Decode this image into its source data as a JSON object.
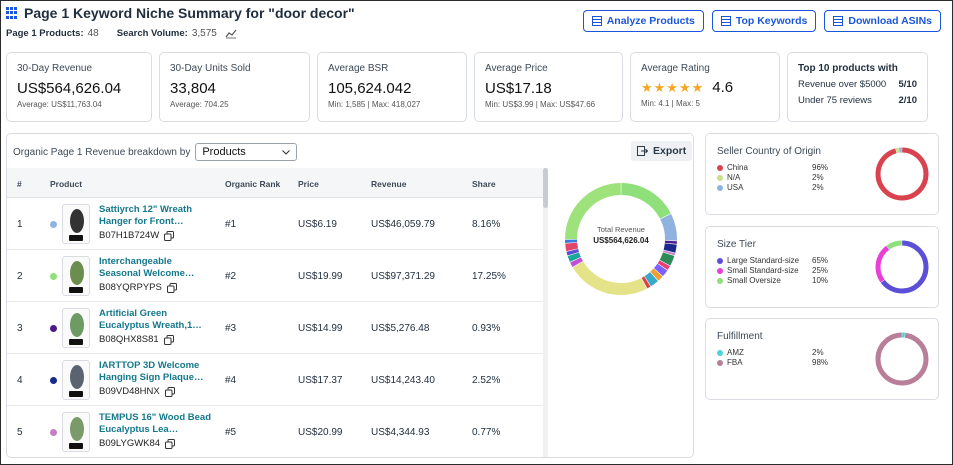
{
  "header": {
    "title": "Page 1 Keyword Niche Summary for \"door decor\"",
    "page1_products_label": "Page 1 Products:",
    "page1_products_value": "48",
    "search_volume_label": "Search Volume:",
    "search_volume_value": "3,575"
  },
  "buttons": {
    "analyze": "Analyze Products",
    "top_keywords": "Top Keywords",
    "download": "Download ASINs"
  },
  "stats": {
    "revenue": {
      "label": "30-Day Revenue",
      "value": "US$564,626.04",
      "sub": "Average: US$11,763.04"
    },
    "units": {
      "label": "30-Day Units Sold",
      "value": "33,804",
      "sub": "Average: 704.25"
    },
    "bsr": {
      "label": "Average BSR",
      "value": "105,624.042",
      "sub": "Min: 1,585 | Max: 418,027"
    },
    "price": {
      "label": "Average Price",
      "value": "US$17.18",
      "sub": "Min: US$3.99 | Max: US$47.66"
    },
    "rating": {
      "label": "Average Rating",
      "value": "4.6",
      "stars": 4.6,
      "sub": "Min: 4.1 | Max: 5"
    },
    "top10": {
      "label": "Top 10 products with",
      "rows": [
        {
          "label": "Revenue over $5000",
          "value": "5/10"
        },
        {
          "label": "Under 75 reviews",
          "value": "2/10"
        }
      ]
    }
  },
  "breakdown": {
    "label": "Organic Page 1 Revenue breakdown by",
    "select_value": "Products",
    "export_label": "Export",
    "total_label": "Total Revenue",
    "total_value": "US$564,626.04"
  },
  "table": {
    "headers": {
      "rank": "#",
      "product": "Product",
      "organic_rank": "Organic Rank",
      "price": "Price",
      "revenue": "Revenue",
      "share": "Share"
    },
    "rows": [
      {
        "rank": "1",
        "name": "Sattiyrch 12\" Wreath Hanger for Front…",
        "asin": "B07H1B724W",
        "organic_rank": "#1",
        "price": "US$6.19",
        "revenue": "US$46,059.79",
        "share": "8.16%",
        "dot": "#8fb3de",
        "img": "#333333"
      },
      {
        "rank": "2",
        "name": "Interchangeable Seasonal Welcome…",
        "asin": "B08YQRPYPS",
        "organic_rank": "#2",
        "price": "US$19.99",
        "revenue": "US$97,371.29",
        "share": "17.25%",
        "dot": "#8fe07a",
        "img": "#6b8e4e"
      },
      {
        "rank": "3",
        "name": "Artificial Green Eucalyptus Wreath,1…",
        "asin": "B08QHX8S81",
        "organic_rank": "#3",
        "price": "US$14.99",
        "revenue": "US$5,276.48",
        "share": "0.93%",
        "dot": "#4b1a8a",
        "img": "#6e9a63"
      },
      {
        "rank": "4",
        "name": "IARTTOP 3D Welcome Hanging Sign Plaque…",
        "asin": "B09VD48HNX",
        "organic_rank": "#4",
        "price": "US$17.37",
        "revenue": "US$14,243.40",
        "share": "2.52%",
        "dot": "#1a2a8a",
        "img": "#5a6470"
      },
      {
        "rank": "5",
        "name": "TEMPUS 16\" Wood Bead Eucalyptus Lea…",
        "asin": "B09LYGWK84",
        "organic_rank": "#5",
        "price": "US$20.99",
        "revenue": "US$4,344.93",
        "share": "0.77%",
        "dot": "#c77dc4",
        "img": "#7a9a6a"
      }
    ]
  },
  "seller_country": {
    "title": "Seller Country of Origin",
    "items": [
      {
        "label": "China",
        "value": "96%",
        "pct": 96,
        "color": "#d9434f"
      },
      {
        "label": "N/A",
        "value": "2%",
        "pct": 2,
        "color": "#c9df8a"
      },
      {
        "label": "USA",
        "value": "2%",
        "pct": 2,
        "color": "#8fb3de"
      }
    ]
  },
  "size_tier": {
    "title": "Size Tier",
    "items": [
      {
        "label": "Large Standard-size",
        "value": "65%",
        "pct": 65,
        "color": "#5b4fd6"
      },
      {
        "label": "Small Standard-size",
        "value": "25%",
        "pct": 25,
        "color": "#e83fd6"
      },
      {
        "label": "Small Oversize",
        "value": "10%",
        "pct": 10,
        "color": "#8fe07a"
      }
    ]
  },
  "fulfillment": {
    "title": "Fulfillment",
    "items": [
      {
        "label": "AMZ",
        "value": "2%",
        "pct": 2,
        "color": "#4fd1d9"
      },
      {
        "label": "FBA",
        "value": "98%",
        "pct": 98,
        "color": "#b97e98"
      }
    ]
  },
  "revenue_donut": {
    "segments": [
      {
        "pct": 17.25,
        "color": "#8fe07a"
      },
      {
        "pct": 8.16,
        "color": "#8fb3de"
      },
      {
        "pct": 0.93,
        "color": "#4b1a8a"
      },
      {
        "pct": 2.52,
        "color": "#1a2a8a"
      },
      {
        "pct": 0.77,
        "color": "#c77dc4"
      },
      {
        "pct": 3.1,
        "color": "#2e8b57"
      },
      {
        "pct": 1.4,
        "color": "#e83f7a"
      },
      {
        "pct": 2.2,
        "color": "#7b61ff"
      },
      {
        "pct": 1.8,
        "color": "#f0a030"
      },
      {
        "pct": 2.6,
        "color": "#3aa8c8"
      },
      {
        "pct": 1.2,
        "color": "#d94343"
      },
      {
        "pct": 24.0,
        "color": "#e4e38a"
      },
      {
        "pct": 1.6,
        "color": "#c24fd6"
      },
      {
        "pct": 1.9,
        "color": "#1aa89a"
      },
      {
        "pct": 1.3,
        "color": "#5b4fd6"
      },
      {
        "pct": 2.3,
        "color": "#e0456b"
      },
      {
        "pct": 1.1,
        "color": "#3b7be0"
      },
      {
        "pct": 24.86,
        "color": "#9ee27c"
      }
    ]
  }
}
